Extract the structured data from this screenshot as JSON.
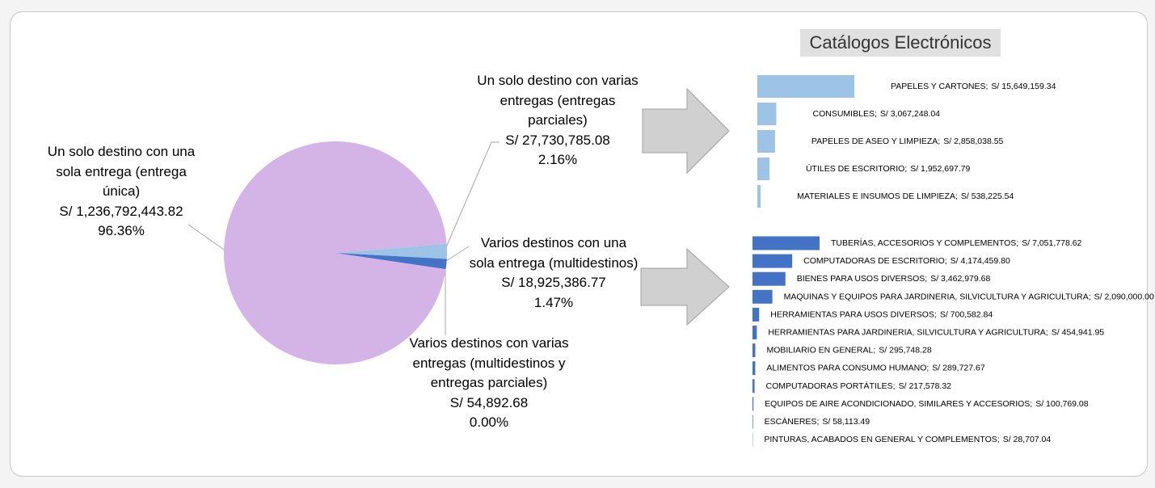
{
  "chart_data": [
    {
      "type": "pie",
      "categories": [
        "Un solo destino con una sola entrega (entrega única)",
        "Un solo destino con varias entregas (entregas parciales)",
        "Varios destinos con una sola entrega (multidestinos)",
        "Varios destinos con varias entregas (multidestinos y entregas parciales)"
      ],
      "values": [
        96.36,
        2.16,
        1.47,
        0.0
      ],
      "value_labels": [
        "96.36%",
        "2.16%",
        "1.47%",
        "0.00%"
      ],
      "amounts": [
        1236792443.82,
        27730785.08,
        18925386.77,
        54892.68
      ],
      "amount_labels": [
        "S/ 1,236,792,443.82",
        "S/ 27,730,785.08",
        "S/ 18,925,386.77",
        "S/ 54,892.68"
      ],
      "colors": [
        "#d4b3e6",
        "#9dc3e6",
        "#4472c4",
        "#2f5597"
      ]
    },
    {
      "type": "hbar",
      "title": "Catálogos Electrónicos",
      "color": "#9dc3e6",
      "categories": [
        "PAPELES Y CARTONES;",
        "CONSUMIBLES;",
        "PAPELES DE ASEO Y LIMPIEZA;",
        "ÚTILES DE ESCRITORIO;",
        "MATERIALES E INSUMOS DE LIMPIEZA;"
      ],
      "values": [
        15649159.34,
        3067248.04,
        2858038.55,
        1952697.79,
        538225.54
      ],
      "value_labels": [
        "S/ 15,649,159.34",
        "S/ 3,067,248.04",
        "S/ 2,858,038.55",
        "S/ 1,952,697.79",
        "S/ 538,225.54"
      ]
    },
    {
      "type": "hbar",
      "color": "#4472c4",
      "categories": [
        "TUBERÍAS, ACCESORIOS Y COMPLEMENTOS;",
        "COMPUTADORAS DE ESCRITORIO;",
        "BIENES PARA USOS DIVERSOS;",
        "MAQUINAS Y EQUIPOS PARA JARDINERIA, SILVICULTURA Y AGRICULTURA;",
        "HERRAMIENTAS PARA USOS DIVERSOS;",
        "HERRAMIENTAS PARA JARDINERIA, SILVICULTURA Y AGRICULTURA;",
        "MOBILIARIO EN GENERAL;",
        "ALIMENTOS PARA CONSUMO HUMANO;",
        "COMPUTADORAS PORTÁTILES;",
        "EQUIPOS DE AIRE ACONDICIONADO, SIMILARES Y ACCESORIOS;",
        "ESCÁNERES;",
        "PINTURAS, ACABADOS EN GENERAL Y COMPLEMENTOS;"
      ],
      "values": [
        7051778.62,
        4174459.8,
        3462979.68,
        2090000.0,
        700582.84,
        454941.95,
        295748.28,
        289727.67,
        217578.32,
        100769.08,
        58113.49,
        28707.04
      ],
      "value_labels": [
        "S/ 7,051,778.62",
        "S/ 4,174,459.80",
        "S/ 3,462,979.68",
        "S/ 2,090,000.00",
        "S/ 700,582.84",
        "S/ 454,941.95",
        "S/ 295,748.28",
        "S/ 289,727.67",
        "S/ 217,578.32",
        "S/ 100,769.08",
        "S/ 58,113.49",
        "S/ 28,707.04"
      ]
    }
  ]
}
